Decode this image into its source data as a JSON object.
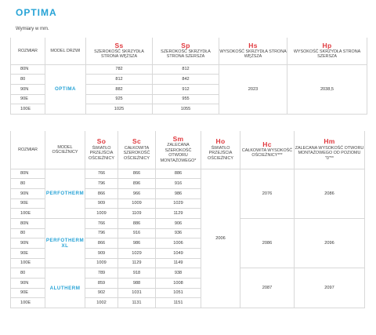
{
  "title": "OPTIMA",
  "subtitle": "Wymiary w mm.",
  "table1": {
    "headers": {
      "rozmiar": "ROZMIAR",
      "model": "MODEL DRZWI",
      "ss_code": "Ss",
      "ss_desc": "SZEROKOŚĆ SKRZYDŁA STRONA WĘŻSZA",
      "sp_code": "Sp",
      "sp_desc": "SZEROKOŚĆ SKRZYDŁA STRONA SZERSZA",
      "hs_code": "Hs",
      "hs_desc": "WYSOKOŚĆ SKRZYDŁA STRONA WĘŻSZA",
      "hp_code": "Hp",
      "hp_desc": "WYSOKOŚĆ SKRZYDŁA STRONA SZERSZA"
    },
    "model": "OPTIMA",
    "hs": "2023",
    "hp": "2038,5",
    "rows": [
      {
        "size": "80N",
        "ss": "782",
        "sp": "812"
      },
      {
        "size": "80",
        "ss": "812",
        "sp": "842"
      },
      {
        "size": "90N",
        "ss": "882",
        "sp": "912"
      },
      {
        "size": "90E",
        "ss": "925",
        "sp": "955"
      },
      {
        "size": "100E",
        "ss": "1025",
        "sp": "1055"
      }
    ]
  },
  "table2": {
    "headers": {
      "rozmiar": "ROZMIAR",
      "model": "MODEL OŚCIEŻNICY",
      "so_code": "So",
      "so_desc": "ŚWIATŁO PRZEJŚCIA OŚCIEŻNICY",
      "sc_code": "Sc",
      "sc_desc": "CAŁKOWITA SZEROKOŚĆ OŚCIEŻNICY",
      "sm_code": "Sm",
      "sm_desc": "ZALECANA SZEROKOŚĆ OTWORU MONTAŻOWEGO*",
      "ho_code": "Ho",
      "ho_desc": "ŚWIATŁO PRZEJŚCIA OŚCIEŻNICY",
      "hc_code": "Hc",
      "hc_desc": "CAŁKOWITA WYSOKOŚĆ OŚCIEŻNICY***",
      "hm_code": "Hm",
      "hm_desc": "ZALECANA WYSOKOŚĆ OTWORU MONTAŻOWEGO OD POZIOMU \"0\"**"
    },
    "ho": "2006",
    "groups": [
      {
        "model": "PERFOTHERM",
        "hc": "2076",
        "hm": "2086",
        "rows": [
          {
            "size": "80N",
            "so": "766",
            "sc": "866",
            "sm": "886"
          },
          {
            "size": "80",
            "so": "796",
            "sc": "896",
            "sm": "916"
          },
          {
            "size": "90N",
            "so": "866",
            "sc": "966",
            "sm": "986"
          },
          {
            "size": "90E",
            "so": "909",
            "sc": "1009",
            "sm": "1029"
          },
          {
            "size": "100E",
            "so": "1009",
            "sc": "1109",
            "sm": "1129"
          }
        ]
      },
      {
        "model": "PERFOTHERM XL",
        "hc": "2086",
        "hm": "2096",
        "rows": [
          {
            "size": "80N",
            "so": "766",
            "sc": "886",
            "sm": "906"
          },
          {
            "size": "80",
            "so": "796",
            "sc": "916",
            "sm": "936"
          },
          {
            "size": "90N",
            "so": "866",
            "sc": "986",
            "sm": "1006"
          },
          {
            "size": "90E",
            "so": "909",
            "sc": "1029",
            "sm": "1049"
          },
          {
            "size": "100E",
            "so": "1009",
            "sc": "1129",
            "sm": "1149"
          }
        ]
      },
      {
        "model": "ALUTHERM",
        "hc": "2087",
        "hm": "2097",
        "rows": [
          {
            "size": "80",
            "so": "789",
            "sc": "918",
            "sm": "938"
          },
          {
            "size": "90N",
            "so": "859",
            "sc": "988",
            "sm": "1008"
          },
          {
            "size": "90E",
            "so": "902",
            "sc": "1031",
            "sm": "1051"
          },
          {
            "size": "100E",
            "so": "1002",
            "sc": "1131",
            "sm": "1151"
          }
        ]
      }
    ]
  }
}
